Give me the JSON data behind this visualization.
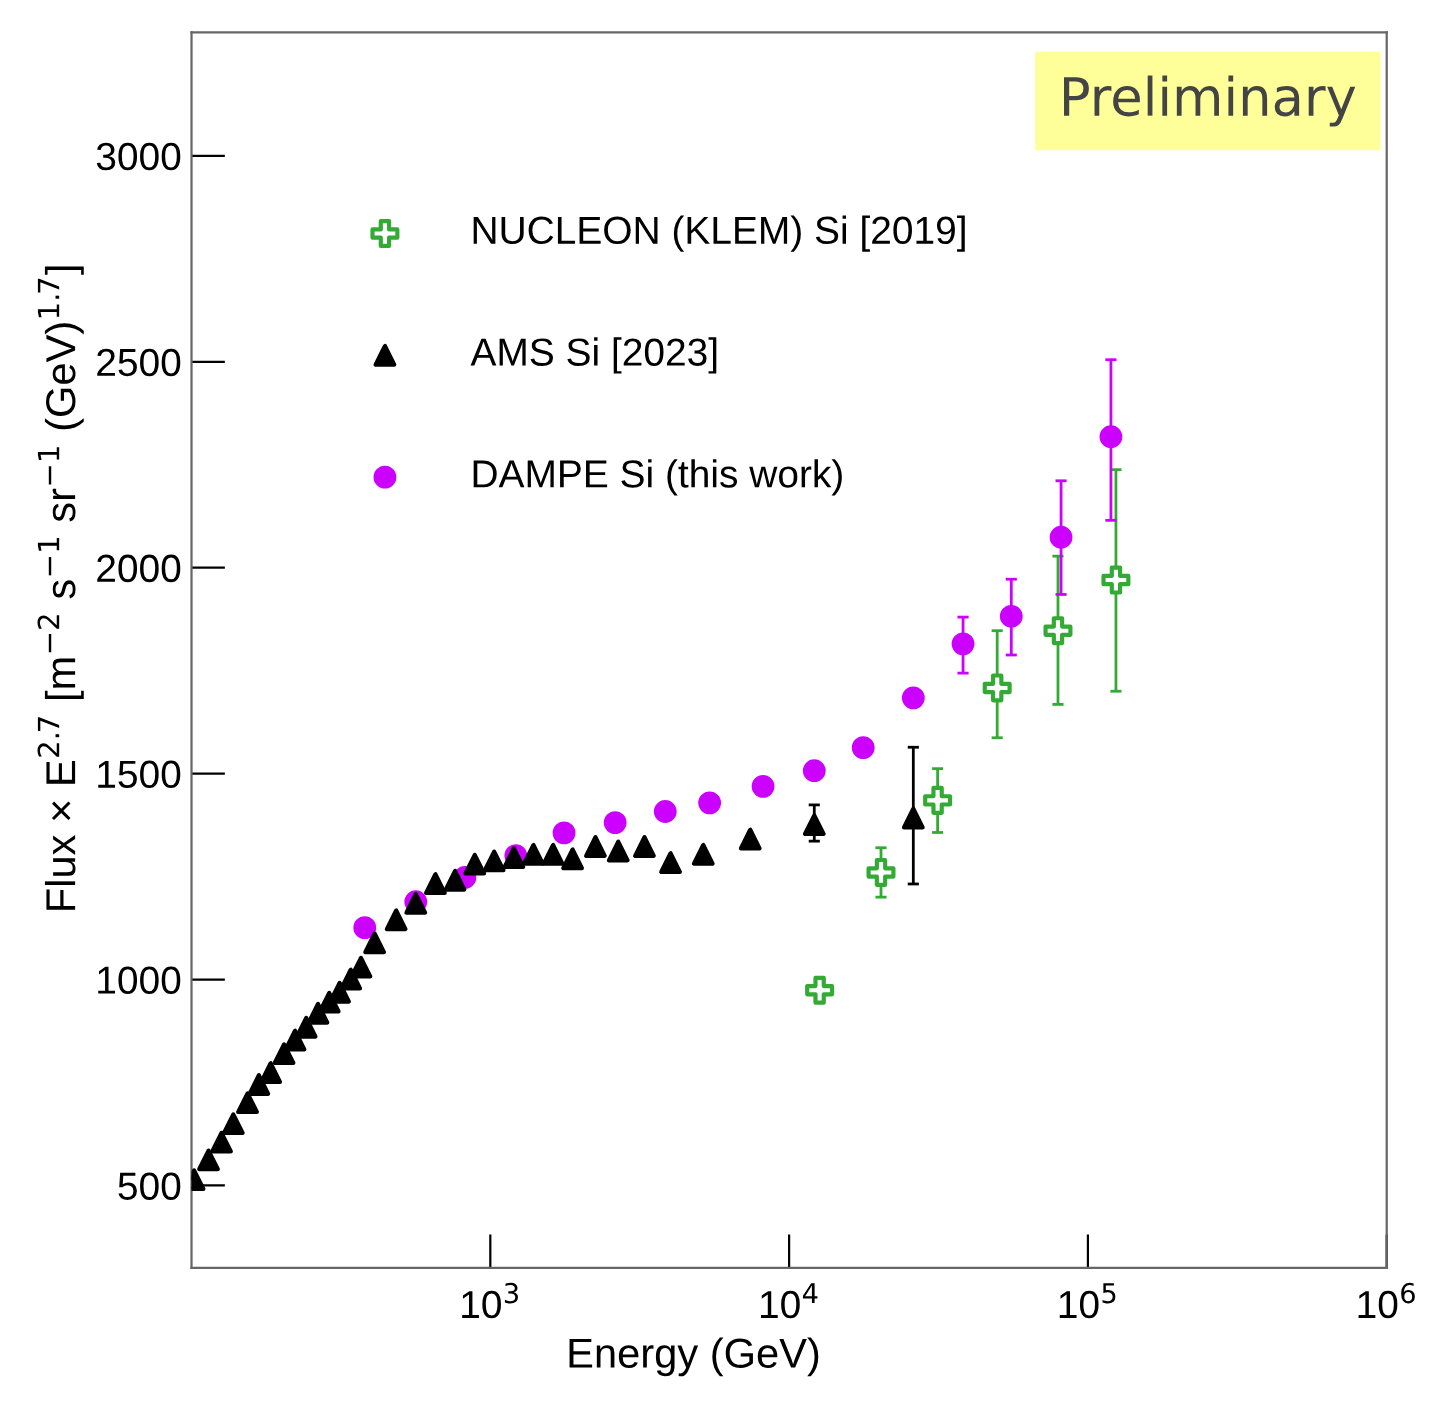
{
  "chart_data": {
    "type": "scatter",
    "xlabel": "Energy (GeV)",
    "ylabel": "Flux × E$^{2.7}$ [m$^{−2}$ s$^{−1}$ sr$^{−1}$ (GeV)$^{1.7}$]",
    "log": "x",
    "xlim": [
      100,
      1000000
    ],
    "ylim": [
      300,
      3300
    ],
    "xticks": [
      {
        "value": 1000,
        "label": "10$^{3}$"
      },
      {
        "value": 10000,
        "label": "10$^{4}$"
      },
      {
        "value": 100000,
        "label": "10$^{5}$"
      },
      {
        "value": 1000000,
        "label": "10$^{6}$"
      }
    ],
    "yticks": [
      500,
      1000,
      1500,
      2000,
      2500,
      3000
    ],
    "grid": false,
    "legend": "top left",
    "annotations": [
      "Preliminary"
    ],
    "series": [
      {
        "name": "NUCLEON (KLEM) Si [2019]",
        "color": "#33aa33",
        "marker": "cross",
        "x": [
          12650,
          20300,
          31400,
          49700,
          79400,
          124100
        ],
        "values": [
          974,
          1260,
          1435,
          1708,
          1847,
          1970
        ],
        "errors": [
          null,
          [
            1200,
            1320
          ],
          [
            1357,
            1512
          ],
          [
            1587,
            1847
          ],
          [
            1668,
            2028
          ],
          [
            1700,
            2238
          ]
        ]
      },
      {
        "name": "AMS Si [2023]",
        "color": "#000000",
        "marker": "triangle",
        "x": [
          102,
          114,
          126,
          138,
          154,
          168,
          184,
          204,
          222,
          242,
          265,
          289,
          313,
          341,
          369,
          410,
          484,
          563,
          655,
          762,
          887,
          1030,
          1199,
          1394,
          1622,
          1885,
          2248,
          2680,
          3280,
          4010,
          5160,
          7410,
          12140,
          26040
        ],
        "values": [
          514,
          562,
          605,
          650,
          701,
          745,
          774,
          820,
          853,
          884,
          918,
          945,
          969,
          1001,
          1030,
          1089,
          1145,
          1185,
          1233,
          1241,
          1280,
          1288,
          1296,
          1304,
          1304,
          1293,
          1323,
          1312,
          1323,
          1284,
          1304,
          1341,
          1376,
          1392
        ],
        "errors": [
          null,
          null,
          null,
          null,
          null,
          null,
          null,
          null,
          null,
          null,
          null,
          null,
          null,
          null,
          null,
          null,
          null,
          null,
          null,
          null,
          null,
          null,
          null,
          null,
          null,
          null,
          null,
          null,
          null,
          null,
          null,
          null,
          [
            1336,
            1424
          ],
          [
            1232,
            1564
          ]
        ]
      },
      {
        "name": "DAMPE Si (this work)",
        "color": "#cc00ff",
        "marker": "circle",
        "x": [
          380,
          563,
          822,
          1217,
          1765,
          2617,
          3850,
          5420,
          8180,
          12140,
          17700,
          26040,
          38200,
          55400,
          81300,
          119400
        ],
        "values": [
          1126,
          1189,
          1248,
          1301,
          1356,
          1381,
          1408,
          1429,
          1469,
          1507,
          1563,
          1684,
          1815,
          1882,
          2074,
          2318
        ],
        "errors": [
          null,
          null,
          null,
          null,
          null,
          null,
          null,
          null,
          null,
          null,
          null,
          null,
          [
            1744,
            1880
          ],
          [
            1788,
            1972
          ],
          [
            1935,
            2211
          ],
          [
            2115,
            2505
          ]
        ]
      }
    ]
  }
}
